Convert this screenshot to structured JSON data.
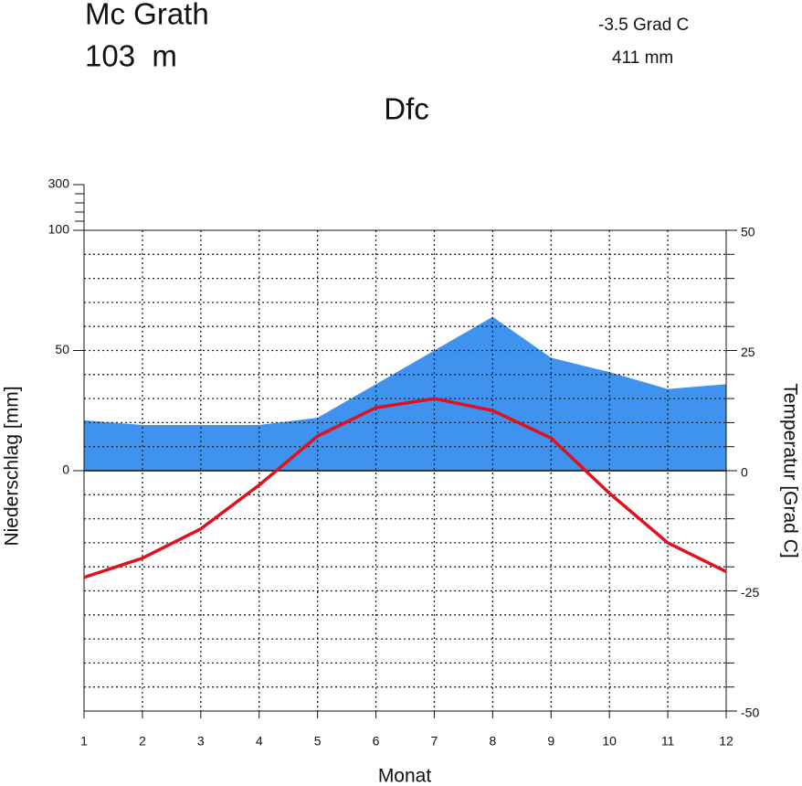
{
  "chart_data": {
    "type": "climate",
    "title": "Mc Grath",
    "subtitle": "103  m",
    "climate_class": "Dfc",
    "annotations": [
      "-3.5 Grad C",
      "411 mm"
    ],
    "xlabel": "Monat",
    "ylabel": "Niederschlag [mm]",
    "y2label": "Temperatur [Grad C]",
    "x": [
      1,
      2,
      3,
      4,
      5,
      6,
      7,
      8,
      9,
      10,
      11,
      12
    ],
    "xlim": [
      1,
      12
    ],
    "xticks": [
      1,
      2,
      3,
      4,
      5,
      6,
      7,
      8,
      9,
      10,
      11,
      12
    ],
    "ylim": [
      -100,
      300
    ],
    "scale_break": 100,
    "yticks": [
      0,
      50,
      100,
      300
    ],
    "y2lim": [
      -50,
      50
    ],
    "y2ticks": [
      -50,
      -25,
      0,
      25,
      50
    ],
    "y2minor_step": 5,
    "grid": true,
    "series": [
      {
        "name": "Niederschlag",
        "kind": "area",
        "color": "#3f93ee",
        "values": [
          21,
          19,
          19,
          19,
          22,
          36,
          50,
          64,
          47,
          41,
          34,
          36
        ]
      },
      {
        "name": "Temperatur",
        "kind": "line",
        "axis": "y2",
        "color": "#e0101e",
        "values": [
          -22.2,
          -18.2,
          -12.1,
          -3,
          7.2,
          13.1,
          15,
          12.5,
          6.8,
          -4.7,
          -15,
          -21
        ]
      }
    ]
  }
}
